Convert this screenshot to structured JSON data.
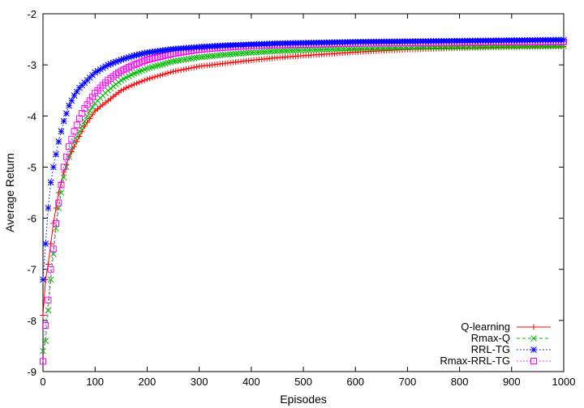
{
  "chart_data": {
    "type": "line",
    "title": "",
    "xlabel": "Episodes",
    "ylabel": "Average Return",
    "xlim": [
      0,
      1000
    ],
    "ylim": [
      -9,
      -2
    ],
    "xticks": [
      0,
      100,
      200,
      300,
      400,
      500,
      600,
      700,
      800,
      900,
      1000
    ],
    "yticks": [
      -9,
      -8,
      -7,
      -6,
      -5,
      -4,
      -3,
      -2
    ],
    "grid": false,
    "legend_position": "bottom-right",
    "x": [
      0,
      5,
      10,
      15,
      20,
      25,
      30,
      40,
      50,
      60,
      70,
      80,
      90,
      100,
      125,
      150,
      175,
      200,
      250,
      300,
      350,
      400,
      450,
      500,
      600,
      700,
      800,
      900,
      1000
    ],
    "series": [
      {
        "name": "Q-learning",
        "color": "#ff0000",
        "marker": "plus",
        "dash": "solid",
        "values": [
          -7.9,
          -7.2,
          -6.9,
          -6.5,
          -6.1,
          -5.8,
          -5.5,
          -5.1,
          -4.8,
          -4.6,
          -4.4,
          -4.2,
          -4.05,
          -3.9,
          -3.7,
          -3.5,
          -3.38,
          -3.28,
          -3.13,
          -3.03,
          -2.97,
          -2.91,
          -2.86,
          -2.82,
          -2.75,
          -2.7,
          -2.67,
          -2.65,
          -2.64
        ]
      },
      {
        "name": "Rmax-Q",
        "color": "#00bb00",
        "marker": "x",
        "dash": "dashed",
        "values": [
          -8.6,
          -8.4,
          -7.8,
          -7.2,
          -6.7,
          -6.2,
          -5.8,
          -5.2,
          -4.8,
          -4.5,
          -4.3,
          -4.1,
          -3.9,
          -3.75,
          -3.5,
          -3.3,
          -3.17,
          -3.07,
          -2.93,
          -2.85,
          -2.8,
          -2.76,
          -2.73,
          -2.71,
          -2.68,
          -2.66,
          -2.65,
          -2.64,
          -2.63
        ]
      },
      {
        "name": "RRL-TG",
        "color": "#0000ff",
        "marker": "star",
        "dash": "dotted",
        "values": [
          -7.2,
          -6.5,
          -5.8,
          -5.3,
          -5.0,
          -4.75,
          -4.5,
          -4.1,
          -3.8,
          -3.6,
          -3.45,
          -3.35,
          -3.25,
          -3.15,
          -3.0,
          -2.9,
          -2.82,
          -2.76,
          -2.69,
          -2.65,
          -2.62,
          -2.6,
          -2.58,
          -2.57,
          -2.55,
          -2.54,
          -2.53,
          -2.52,
          -2.51
        ]
      },
      {
        "name": "Rmax-RRL-TG",
        "color": "#ff00ff",
        "marker": "square",
        "dash": "dotted",
        "values": [
          -8.8,
          -8.1,
          -7.6,
          -7.0,
          -6.6,
          -6.1,
          -5.7,
          -5.0,
          -4.6,
          -4.3,
          -4.05,
          -3.85,
          -3.7,
          -3.55,
          -3.3,
          -3.12,
          -3.0,
          -2.9,
          -2.78,
          -2.7,
          -2.66,
          -2.63,
          -2.61,
          -2.6,
          -2.58,
          -2.57,
          -2.56,
          -2.55,
          -2.55
        ]
      }
    ]
  }
}
